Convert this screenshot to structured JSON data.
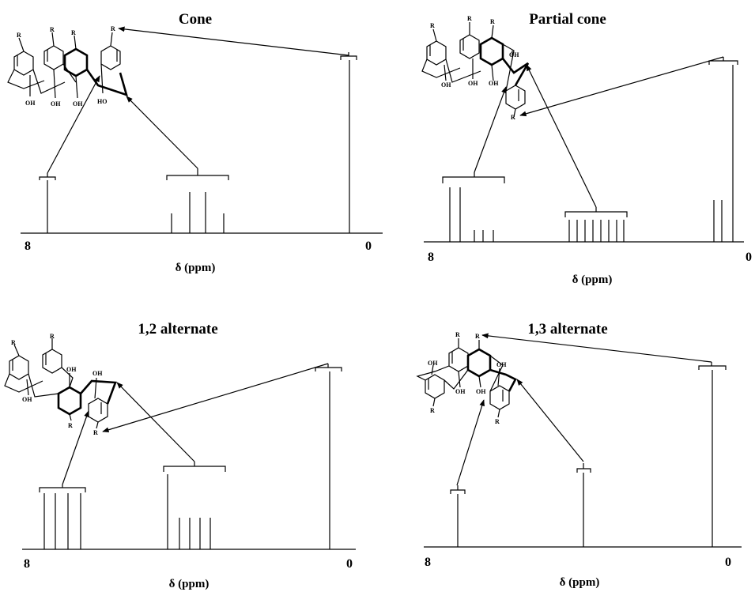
{
  "panels": [
    {
      "title": "Cone",
      "x_start_label": "8",
      "x_end_label": "0",
      "xlabel": "δ (ppm)",
      "atom_labels": {
        "r": "R",
        "oh": "OH",
        "ho": "HO"
      }
    },
    {
      "title": "Partial cone",
      "x_start_label": "8",
      "x_end_label": "0",
      "xlabel": "δ (ppm)",
      "atom_labels": {
        "r": "R",
        "oh": "OH"
      }
    },
    {
      "title": "1,2 alternate",
      "x_start_label": "8",
      "x_end_label": "0",
      "xlabel": "δ (ppm)",
      "atom_labels": {
        "r": "R",
        "oh": "OH"
      }
    },
    {
      "title": "1,3 alternate",
      "x_start_label": "8",
      "x_end_label": "0",
      "xlabel": "δ (ppm)",
      "atom_labels": {
        "r": "R",
        "oh": "OH"
      }
    }
  ]
}
